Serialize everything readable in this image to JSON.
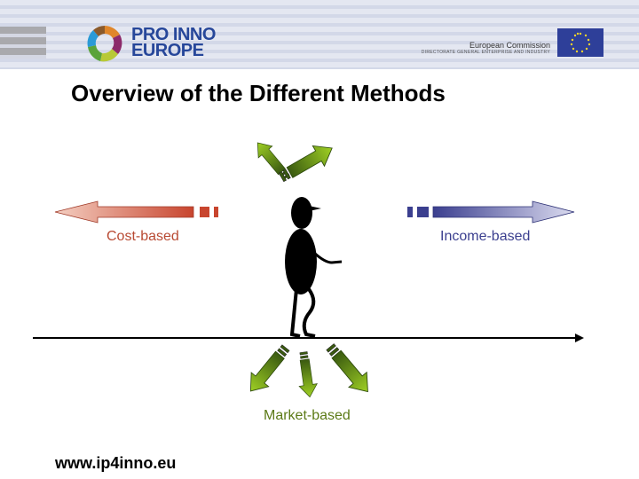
{
  "header": {
    "logo_line1": "PRO INNO",
    "logo_line2": "EUROPE",
    "commission": "European Commission",
    "directorate": "DIRECTORATE GENERAL ENTERPRISE AND INDUSTRY"
  },
  "slide": {
    "title": "Overview of the Different Methods",
    "labels": {
      "cost": "Cost-based",
      "income": "Income-based",
      "market": "Market-based"
    },
    "footer_url": "www.ip4inno.eu"
  },
  "colors": {
    "cost": "#c8452e",
    "income": "#3b3f8f",
    "market": "#7aa81e"
  }
}
